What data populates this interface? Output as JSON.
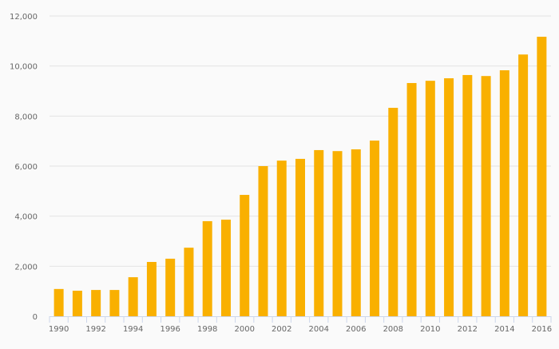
{
  "chart_data": {
    "type": "bar",
    "title": "",
    "xlabel": "",
    "ylabel": "",
    "ylim": [
      0,
      12000
    ],
    "yticks": [
      0,
      2000,
      4000,
      6000,
      8000,
      10000,
      12000
    ],
    "ytick_labels": [
      "0",
      "2,000",
      "4,000",
      "6,000",
      "8,000",
      "10,000",
      "12,000"
    ],
    "grid": true,
    "legend": "none",
    "bar_color": "#f9b000",
    "categories": [
      "1990",
      "1991",
      "1992",
      "1993",
      "1994",
      "1995",
      "1996",
      "1997",
      "1998",
      "1999",
      "2000",
      "2001",
      "2002",
      "2003",
      "2004",
      "2005",
      "2006",
      "2007",
      "2008",
      "2009",
      "2010",
      "2011",
      "2012",
      "2013",
      "2014",
      "2015",
      "2016"
    ],
    "xtick_labels": [
      "1990",
      "1992",
      "1994",
      "1996",
      "1998",
      "2000",
      "2002",
      "2004",
      "2006",
      "2008",
      "2010",
      "2012",
      "2014",
      "2016"
    ],
    "values": [
      1090,
      1020,
      1050,
      1050,
      1560,
      2170,
      2300,
      2740,
      3800,
      3860,
      4850,
      6000,
      6220,
      6290,
      6640,
      6600,
      6670,
      7020,
      8330,
      9320,
      9410,
      9510,
      9640,
      9600,
      9830,
      10460,
      11170
    ]
  }
}
